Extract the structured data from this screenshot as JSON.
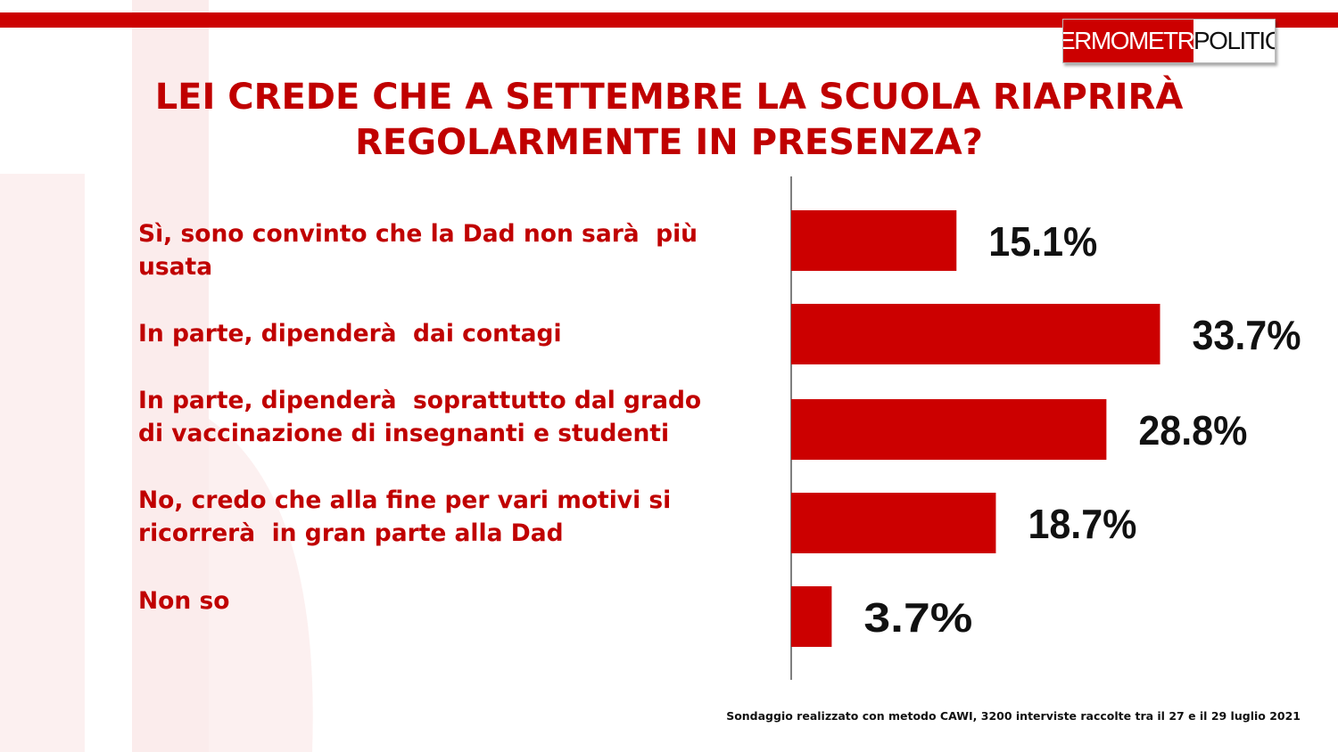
{
  "header": {
    "logo_part1": "TERMOMETRO",
    "logo_part2": "POLITICO",
    "title_line1": "LEI CREDE CHE A SETTEMBRE LA SCUOLA RIAPRIRÀ",
    "title_line2": "REGOLARMENTE IN PRESENZA?"
  },
  "colors": {
    "accent": "#cc0000",
    "text": "#c00000",
    "bar": "#cc0000",
    "value_text": "#111111"
  },
  "chart_data": {
    "type": "bar",
    "orientation": "horizontal",
    "title": "LEI CREDE CHE A SETTEMBRE LA SCUOLA RIAPRIRÀ REGOLARMENTE IN PRESENZA?",
    "categories": [
      [
        "Sì, sono convinto che la Dad non sarà  più",
        "usata"
      ],
      [
        "In parte, dipenderà  dai contagi"
      ],
      [
        "In parte, dipenderà  soprattutto dal grado",
        "di vaccinazione di insegnanti e studenti"
      ],
      [
        "No, credo che alla fine per vari motivi si",
        "ricorrerà  in gran parte alla Dad"
      ],
      [
        "Non so"
      ]
    ],
    "values": [
      15.1,
      33.7,
      28.8,
      18.7,
      3.7
    ],
    "data_labels": [
      "15.1%",
      "33.7%",
      "28.8%",
      "18.7%",
      "3.7%"
    ],
    "unit": "%",
    "grid": false,
    "legend": "none"
  },
  "footer": {
    "note": "Sondaggio realizzato con metodo CAWI, 3200 interviste raccolte tra il 27 e il 29  luglio 2021"
  }
}
